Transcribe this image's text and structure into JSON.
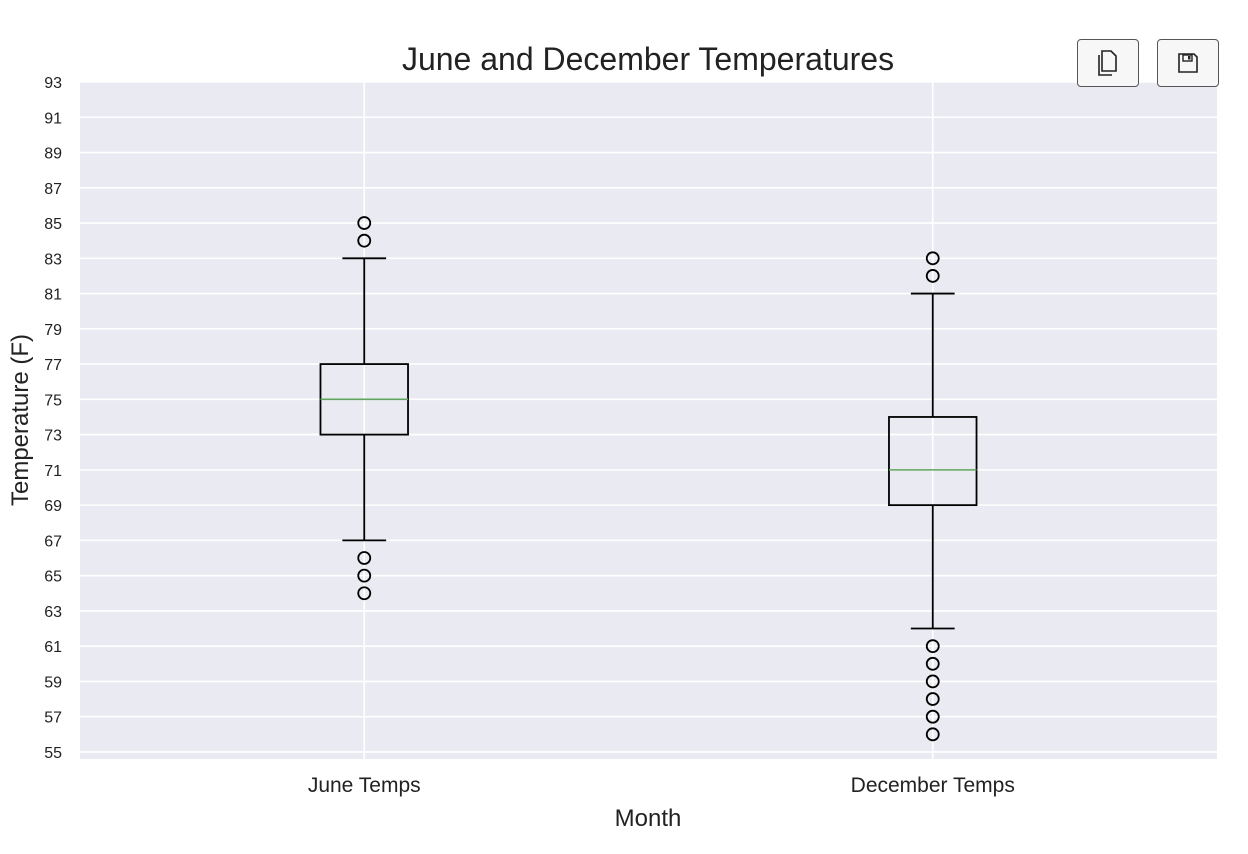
{
  "toolbar": {
    "copy_icon": "copy-icon",
    "save_icon": "floppy-disk-icon"
  },
  "chart_data": {
    "type": "boxplot",
    "title": "June and December Temperatures",
    "xlabel": "Month",
    "ylabel": "Temperature (F)",
    "categories": [
      "June Temps",
      "December Temps"
    ],
    "ylim": [
      54.6,
      93
    ],
    "yticks": [
      55,
      57,
      59,
      61,
      63,
      65,
      67,
      69,
      71,
      73,
      75,
      77,
      79,
      81,
      83,
      85,
      87,
      89,
      91,
      93
    ],
    "grid": true,
    "boxes": [
      {
        "label": "June Temps",
        "whisker_low": 67,
        "q1": 73,
        "median": 75,
        "q3": 77,
        "whisker_high": 83,
        "outliers": [
          85,
          84,
          66,
          65,
          64
        ]
      },
      {
        "label": "December Temps",
        "whisker_low": 62,
        "q1": 69,
        "median": 71,
        "q3": 74,
        "whisker_high": 81,
        "outliers": [
          83,
          82,
          61,
          60,
          59,
          58,
          57,
          56
        ]
      }
    ],
    "colors": {
      "background": "#eaeaf2",
      "grid": "#ffffff",
      "box": "#000000",
      "median": "#5ea55e"
    }
  }
}
